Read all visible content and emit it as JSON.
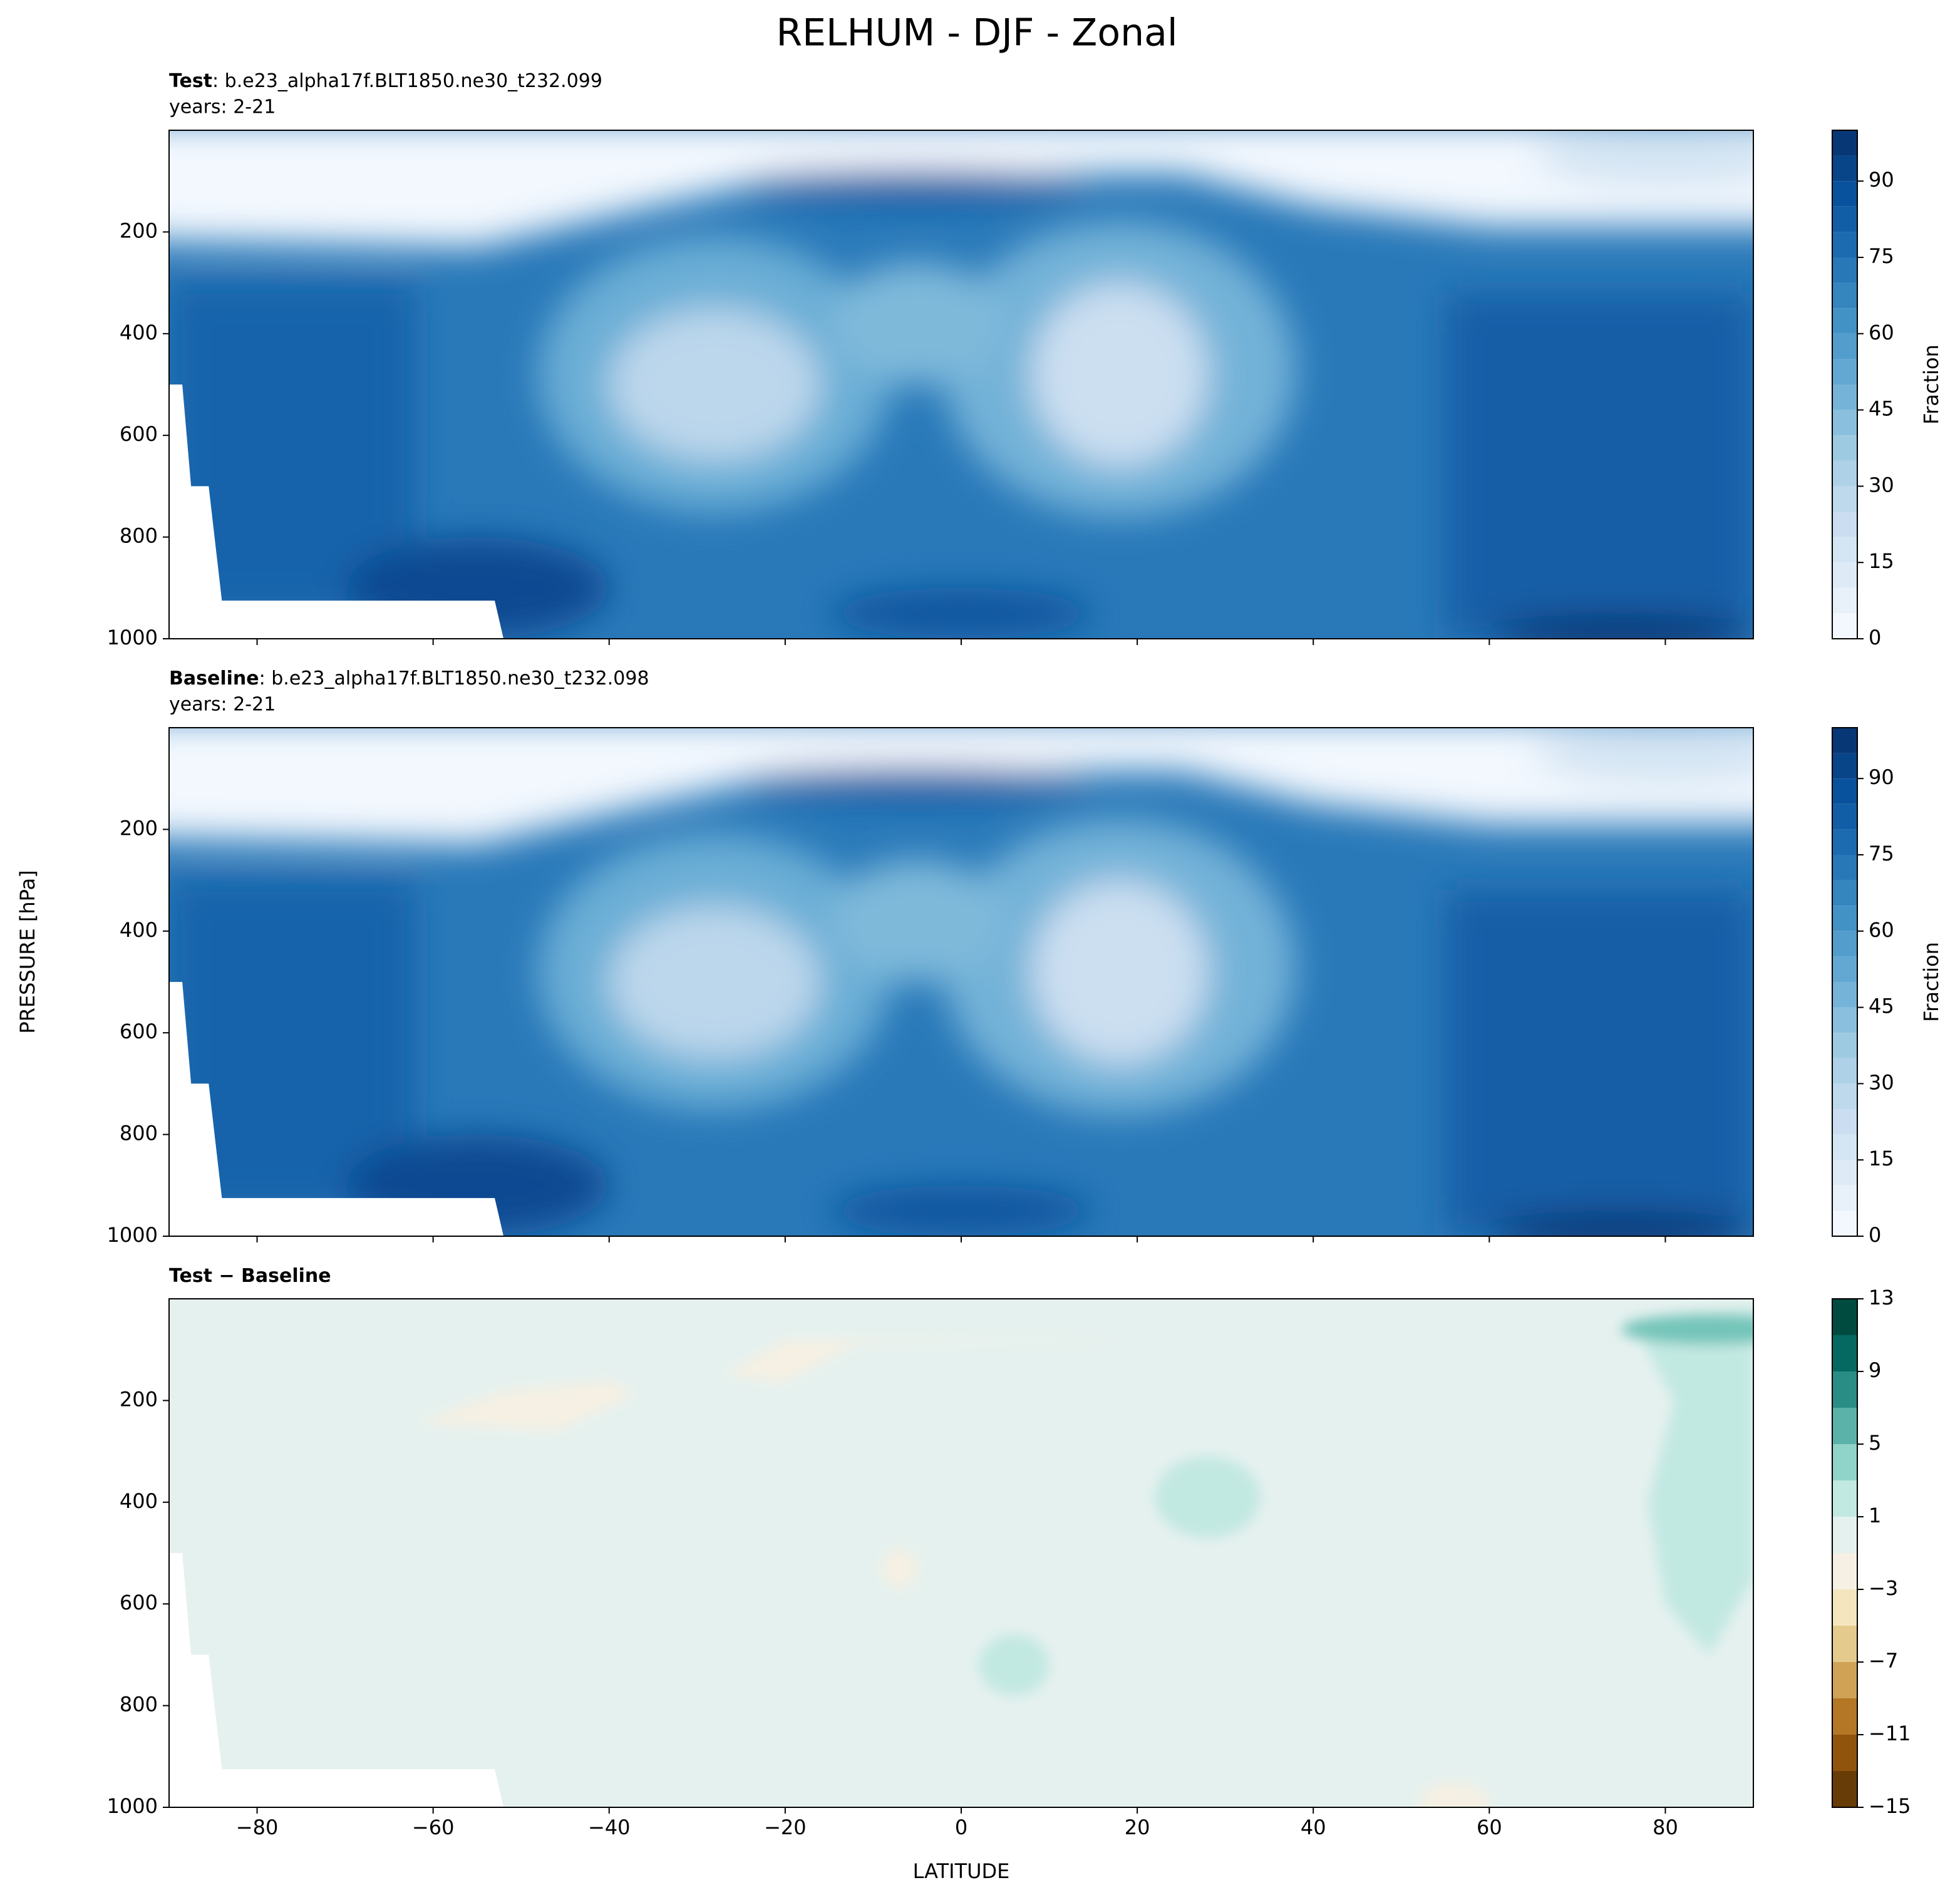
{
  "title": "RELHUM - DJF - Zonal",
  "y_label": "PRESSURE [hPa]",
  "x_label": "LATITUDE",
  "chart_data": [
    {
      "type": "contour",
      "title": "Test",
      "case": ": b.e23_alpha17f.BLT1850.ne30_t232.099",
      "subtitle": "years: 2-21",
      "xlim": [
        -90,
        90
      ],
      "xticks": [
        -80,
        -60,
        -40,
        -20,
        0,
        20,
        40,
        60,
        80
      ],
      "show_xticklabels": false,
      "ylim": [
        1000,
        0
      ],
      "yticks": [
        200,
        400,
        600,
        800,
        1000
      ],
      "field": "relhum",
      "colorbar_label": "Fraction",
      "clim": [
        0,
        100
      ],
      "levels": [
        0,
        5,
        10,
        15,
        20,
        25,
        30,
        35,
        40,
        45,
        50,
        55,
        60,
        65,
        70,
        75,
        80,
        85,
        90,
        95,
        100
      ],
      "colorbar_ticks": [
        0,
        15,
        30,
        45,
        60,
        75,
        90
      ],
      "colormap": [
        "#f7fbff",
        "#deebf7",
        "#c6dbef",
        "#9ecae1",
        "#6baed6",
        "#4292c6",
        "#2171b5",
        "#08519c",
        "#08306b"
      ]
    },
    {
      "type": "contour",
      "title": "Baseline",
      "case": ": b.e23_alpha17f.BLT1850.ne30_t232.098",
      "subtitle": "years: 2-21",
      "xlim": [
        -90,
        90
      ],
      "xticks": [
        -80,
        -60,
        -40,
        -20,
        0,
        20,
        40,
        60,
        80
      ],
      "show_xticklabels": false,
      "ylim": [
        1000,
        0
      ],
      "yticks": [
        200,
        400,
        600,
        800,
        1000
      ],
      "field": "relhum",
      "colorbar_label": "Fraction",
      "clim": [
        0,
        100
      ],
      "levels": [
        0,
        5,
        10,
        15,
        20,
        25,
        30,
        35,
        40,
        45,
        50,
        55,
        60,
        65,
        70,
        75,
        80,
        85,
        90,
        95,
        100
      ],
      "colorbar_ticks": [
        0,
        15,
        30,
        45,
        60,
        75,
        90
      ],
      "colormap": [
        "#f7fbff",
        "#deebf7",
        "#c6dbef",
        "#9ecae1",
        "#6baed6",
        "#4292c6",
        "#2171b5",
        "#08519c",
        "#08306b"
      ]
    },
    {
      "type": "contour",
      "title": "Test − Baseline",
      "xlim": [
        -90,
        90
      ],
      "xticks": [
        {
          "value": -80,
          "label": "−80"
        },
        {
          "value": -60,
          "label": "−60"
        },
        {
          "value": -40,
          "label": "−40"
        },
        {
          "value": -20,
          "label": "−20"
        },
        0,
        20,
        40,
        60,
        80
      ],
      "show_xticklabels": true,
      "ylim": [
        1000,
        0
      ],
      "yticks": [
        200,
        400,
        600,
        800,
        1000
      ],
      "field": "diff",
      "clim": [
        -15,
        13
      ],
      "levels": [
        -15,
        -13,
        -11,
        -9,
        -7,
        -5,
        -3,
        -1,
        1,
        3,
        5,
        7,
        9,
        11,
        13
      ],
      "colorbar_ticks": [
        {
          "value": -15,
          "label": "−15"
        },
        {
          "value": -11,
          "label": "−11"
        },
        {
          "value": -7,
          "label": "−7"
        },
        {
          "value": -3,
          "label": "−3"
        },
        1,
        5,
        9,
        13
      ],
      "colormap": [
        "#543005",
        "#8c510a",
        "#bf812d",
        "#dfc27d",
        "#f6e8c3",
        "#f5f5f5",
        "#c7eae5",
        "#80cdc1",
        "#35978f",
        "#01665e",
        "#003c30"
      ]
    }
  ]
}
